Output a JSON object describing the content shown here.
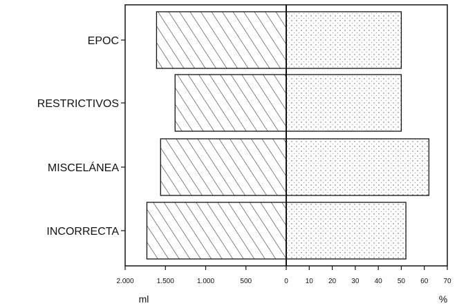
{
  "chart_data": {
    "type": "bar",
    "orientation": "horizontal",
    "layout": "back-to-back",
    "categories": [
      "EPOC",
      "RESTRICTIVOS",
      "MISCELÁNEA",
      "INCORRECTA"
    ],
    "series": [
      {
        "side": "left",
        "unit": "ml",
        "pattern": "diagonal-hatch",
        "values": [
          1610,
          1380,
          1560,
          1730
        ]
      },
      {
        "side": "right",
        "unit": "%",
        "pattern": "dotted",
        "values": [
          50,
          50,
          62,
          52
        ]
      }
    ],
    "left_axis": {
      "label": "ml",
      "range": [
        0,
        2000
      ],
      "reversed": true,
      "ticks": [
        2000,
        1500,
        1000,
        500,
        0
      ],
      "tick_labels": [
        "2.000",
        "1.500",
        "1.000",
        "500",
        "0"
      ]
    },
    "right_axis": {
      "label": "%",
      "range": [
        0,
        70
      ],
      "ticks": [
        0,
        10,
        20,
        30,
        40,
        50,
        60,
        70
      ],
      "tick_labels": [
        "0",
        "10",
        "20",
        "30",
        "40",
        "50",
        "60",
        "70"
      ]
    },
    "title": "",
    "grid": false,
    "legend": "none"
  }
}
